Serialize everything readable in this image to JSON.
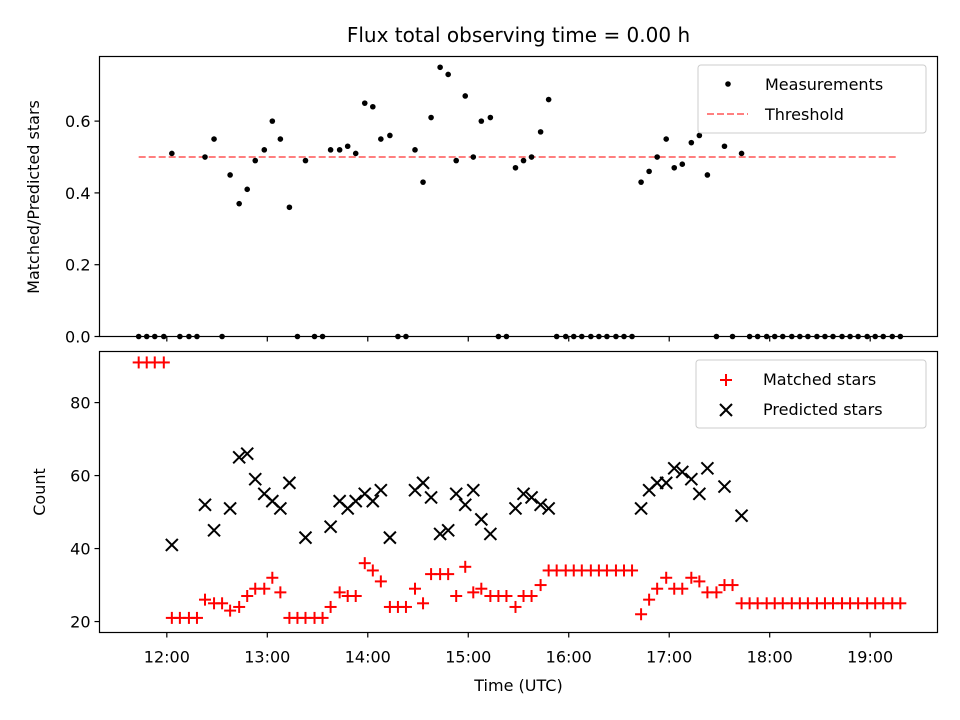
{
  "chart_data": [
    {
      "type": "scatter",
      "title": "Flux total observing time = 0.00 h",
      "xlabel": "",
      "ylabel": "Matched/Predicted stars",
      "xlim": [
        11.33,
        19.67
      ],
      "ylim": [
        0,
        0.78
      ],
      "yticks": [
        0.0,
        0.2,
        0.4,
        0.6
      ],
      "ytick_labels": [
        "0.0",
        "0.2",
        "0.4",
        "0.6"
      ],
      "legend": {
        "location": "top-right",
        "entries": [
          "Measurements",
          "Threshold"
        ]
      },
      "colors": {
        "measurements": "#000000",
        "threshold": "#ff7f7f"
      },
      "threshold": {
        "name": "Threshold",
        "value": 0.5,
        "x_range": [
          11.72,
          19.28
        ]
      },
      "series": [
        {
          "name": "Measurements",
          "x": [
            11.72,
            11.8,
            11.88,
            11.97,
            12.05,
            12.13,
            12.22,
            12.3,
            12.38,
            12.47,
            12.55,
            12.63,
            12.72,
            12.8,
            12.88,
            12.97,
            13.05,
            13.13,
            13.22,
            13.3,
            13.38,
            13.47,
            13.55,
            13.63,
            13.72,
            13.8,
            13.88,
            13.97,
            14.05,
            14.13,
            14.22,
            14.3,
            14.38,
            14.47,
            14.55,
            14.63,
            14.72,
            14.8,
            14.88,
            14.97,
            15.05,
            15.13,
            15.22,
            15.3,
            15.38,
            15.47,
            15.55,
            15.63,
            15.72,
            15.8,
            15.88,
            15.97,
            16.05,
            16.13,
            16.22,
            16.3,
            16.38,
            16.47,
            16.55,
            16.63,
            16.72,
            16.8,
            16.88,
            16.97,
            17.05,
            17.13,
            17.22,
            17.3,
            17.38,
            17.47,
            17.55,
            17.63,
            17.72,
            17.8,
            17.88,
            17.97,
            18.05,
            18.13,
            18.22,
            18.3,
            18.38,
            18.47,
            18.55,
            18.63,
            18.72,
            18.8,
            18.88,
            18.97,
            19.05,
            19.13,
            19.22,
            19.3
          ],
          "y": [
            0.0,
            0.0,
            0.0,
            0.0,
            0.51,
            0.0,
            0.0,
            0.0,
            0.5,
            0.55,
            0.0,
            0.45,
            0.37,
            0.41,
            0.49,
            0.52,
            0.6,
            0.55,
            0.36,
            0.0,
            0.49,
            0.0,
            0.0,
            0.52,
            0.52,
            0.53,
            0.51,
            0.65,
            0.64,
            0.55,
            0.56,
            0.0,
            0.0,
            0.52,
            0.43,
            0.61,
            0.75,
            0.73,
            0.49,
            0.67,
            0.5,
            0.6,
            0.61,
            0.0,
            0.0,
            0.47,
            0.49,
            0.5,
            0.57,
            0.66,
            0.0,
            0.0,
            0.0,
            0.0,
            0.0,
            0.0,
            0.0,
            0.0,
            0.0,
            0.0,
            0.43,
            0.46,
            0.5,
            0.55,
            0.47,
            0.48,
            0.54,
            0.56,
            0.45,
            0.0,
            0.53,
            0.0,
            0.51,
            0.0,
            0.0,
            0.0,
            0.0,
            0.0,
            0.0,
            0.0,
            0.0,
            0.0,
            0.0,
            0.0,
            0.0,
            0.0,
            0.0,
            0.0,
            0.0,
            0.0,
            0.0,
            0.0
          ]
        }
      ]
    },
    {
      "type": "scatter",
      "title": "",
      "xlabel": "Time (UTC)",
      "ylabel": "Count",
      "xlim": [
        11.33,
        19.67
      ],
      "ylim": [
        17,
        94
      ],
      "yticks": [
        20,
        40,
        60,
        80
      ],
      "ytick_labels": [
        "20",
        "40",
        "60",
        "80"
      ],
      "xticks": [
        12,
        13,
        14,
        15,
        16,
        17,
        18,
        19
      ],
      "xtick_labels": [
        "12:00",
        "13:00",
        "14:00",
        "15:00",
        "16:00",
        "17:00",
        "18:00",
        "19:00"
      ],
      "legend": {
        "location": "top-right",
        "entries": [
          "Matched stars",
          "Predicted stars"
        ]
      },
      "colors": {
        "matched": "#ff0000",
        "predicted": "#000000"
      },
      "series": [
        {
          "name": "Matched stars",
          "marker": "+",
          "x": [
            11.72,
            11.8,
            11.88,
            11.97,
            12.05,
            12.13,
            12.22,
            12.3,
            12.38,
            12.47,
            12.55,
            12.63,
            12.72,
            12.8,
            12.88,
            12.97,
            13.05,
            13.13,
            13.22,
            13.3,
            13.38,
            13.47,
            13.55,
            13.63,
            13.72,
            13.8,
            13.88,
            13.97,
            14.05,
            14.13,
            14.22,
            14.3,
            14.38,
            14.47,
            14.55,
            14.63,
            14.72,
            14.8,
            14.88,
            14.97,
            15.05,
            15.13,
            15.22,
            15.3,
            15.38,
            15.47,
            15.55,
            15.63,
            15.72,
            15.8,
            15.88,
            15.97,
            16.05,
            16.13,
            16.22,
            16.3,
            16.38,
            16.47,
            16.55,
            16.63,
            16.72,
            16.8,
            16.88,
            16.97,
            17.05,
            17.13,
            17.22,
            17.3,
            17.38,
            17.47,
            17.55,
            17.63,
            17.72,
            17.8,
            17.88,
            17.97,
            18.05,
            18.13,
            18.22,
            18.3,
            18.38,
            18.47,
            18.55,
            18.63,
            18.72,
            18.8,
            18.88,
            18.97,
            19.05,
            19.13,
            19.22,
            19.3
          ],
          "y": [
            91,
            91,
            91,
            91,
            21,
            21,
            21,
            21,
            26,
            25,
            25,
            23,
            24,
            27,
            29,
            29,
            32,
            28,
            21,
            21,
            21,
            21,
            21,
            24,
            28,
            27,
            27,
            36,
            34,
            31,
            24,
            24,
            24,
            29,
            25,
            33,
            33,
            33,
            27,
            35,
            28,
            29,
            27,
            27,
            27,
            24,
            27,
            27,
            30,
            34,
            34,
            34,
            34,
            34,
            34,
            34,
            34,
            34,
            34,
            34,
            22,
            26,
            29,
            32,
            29,
            29,
            32,
            31,
            28,
            28,
            30,
            30,
            25,
            25,
            25,
            25,
            25,
            25,
            25,
            25,
            25,
            25,
            25,
            25,
            25,
            25,
            25,
            25,
            25,
            25,
            25,
            25
          ]
        },
        {
          "name": "Predicted stars",
          "marker": "x",
          "x": [
            12.05,
            12.38,
            12.47,
            12.63,
            12.72,
            12.8,
            12.88,
            12.97,
            13.05,
            13.13,
            13.22,
            13.38,
            13.63,
            13.72,
            13.8,
            13.88,
            13.97,
            14.05,
            14.13,
            14.22,
            14.47,
            14.55,
            14.63,
            14.72,
            14.8,
            14.88,
            14.97,
            15.05,
            15.13,
            15.22,
            15.47,
            15.55,
            15.63,
            15.72,
            15.8,
            16.72,
            16.8,
            16.88,
            16.97,
            17.05,
            17.13,
            17.22,
            17.3,
            17.38,
            17.55,
            17.72
          ],
          "y": [
            41,
            52,
            45,
            51,
            65,
            66,
            59,
            55,
            53,
            51,
            58,
            43,
            46,
            53,
            51,
            53,
            55,
            53,
            56,
            43,
            56,
            58,
            54,
            44,
            45,
            55,
            52,
            56,
            48,
            44,
            51,
            55,
            54,
            52,
            51,
            51,
            56,
            58,
            58,
            62,
            61,
            59,
            55,
            62,
            57,
            49
          ]
        }
      ]
    }
  ]
}
